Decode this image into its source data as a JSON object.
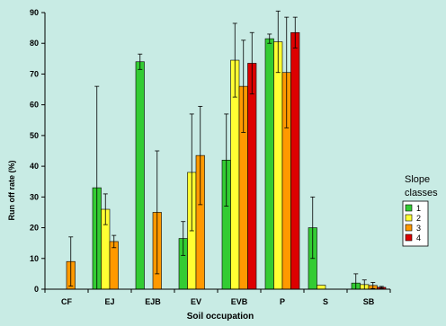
{
  "chart_data": {
    "type": "bar",
    "title": "",
    "xlabel": "Soil occupation",
    "ylabel": "Run off rate (%)",
    "ylim": [
      0,
      90
    ],
    "yticks": [
      0,
      10,
      20,
      30,
      40,
      50,
      60,
      70,
      80,
      90
    ],
    "grid": false,
    "error_bars": true,
    "categories": [
      "CF",
      "EJ",
      "EJB",
      "EV",
      "EVB",
      "P",
      "S",
      "SB"
    ],
    "legend": {
      "title": "Slope classes",
      "position": "right"
    },
    "series": [
      {
        "name": "1",
        "color": "#33cc33",
        "values": [
          0,
          33,
          74,
          16.5,
          42,
          81.5,
          20,
          2
        ],
        "errors": [
          0,
          33,
          2.5,
          5.5,
          15,
          1.5,
          10,
          3
        ]
      },
      {
        "name": "2",
        "color": "#ffff33",
        "values": [
          0,
          26,
          0,
          38,
          74.5,
          80.5,
          1.3,
          1.5
        ],
        "errors": [
          0,
          5,
          0,
          19,
          12,
          10,
          0,
          1.5
        ]
      },
      {
        "name": "3",
        "color": "#ff9900",
        "values": [
          9,
          15.5,
          25,
          43.5,
          66,
          70.5,
          0,
          1.2
        ],
        "errors": [
          8,
          2,
          20,
          16,
          15,
          18,
          0,
          1
        ]
      },
      {
        "name": "4",
        "color": "#dd0000",
        "values": [
          0,
          0,
          0,
          0,
          73.5,
          83.5,
          0,
          0.6
        ],
        "errors": [
          0,
          0,
          0,
          0,
          10,
          5,
          0,
          0.3
        ]
      }
    ]
  }
}
